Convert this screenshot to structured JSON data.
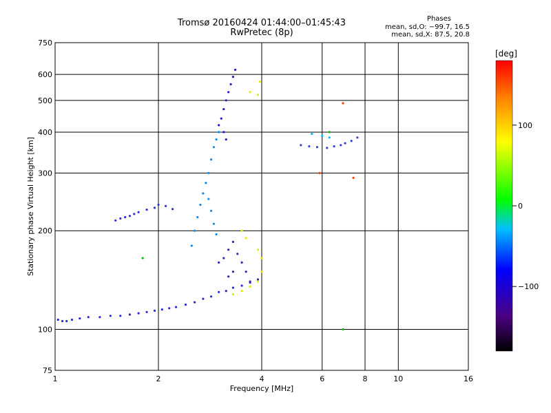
{
  "header": {
    "title_line1": "Tromsø 20160424 01:44:00–01:45:43",
    "title_line2": "RwPretec (8p)"
  },
  "phases": {
    "heading": "Phases",
    "line_o": "mean, sd,O: −99.7, 16.5",
    "line_x": "mean, sd,X:  87.5, 20.8"
  },
  "colorbar": {
    "label": "[deg]",
    "ticks": [
      "100",
      "0",
      "−100"
    ],
    "tick_values": [
      100,
      0,
      -100
    ],
    "range": [
      -180,
      180
    ],
    "colors": [
      "#000000",
      "#4b0082",
      "#0000ff",
      "#00bfff",
      "#00ff00",
      "#ffff00",
      "#ff8c00",
      "#ff0000"
    ]
  },
  "chart_data": {
    "type": "scatter",
    "title": "Tromsø 20160424 01:44:00–01:45:43",
    "subtitle": "RwPretec (8p)",
    "xlabel": "Frequency [MHz]",
    "ylabel": "Stationary phase Virtual Height [km]",
    "xscale": "log",
    "yscale": "log",
    "xlim": [
      1,
      16
    ],
    "ylim": [
      75,
      750
    ],
    "x_ticks": [
      "1",
      "2",
      "4",
      "6",
      "8",
      "10",
      "16"
    ],
    "x_tick_values": [
      1,
      2,
      4,
      6,
      8,
      10,
      16
    ],
    "y_ticks": [
      "75",
      "100",
      "200",
      "300",
      "400",
      "500",
      "600",
      "750"
    ],
    "y_tick_values": [
      75,
      100,
      200,
      300,
      400,
      500,
      600,
      750
    ],
    "grid": true,
    "traces": [
      {
        "name": "",
        "color": "#2828dc",
        "points": [
          [
            1.02,
            107
          ],
          [
            1.05,
            106
          ],
          [
            1.08,
            106
          ],
          [
            1.12,
            107
          ],
          [
            1.18,
            108
          ],
          [
            1.25,
            109
          ],
          [
            1.35,
            109
          ],
          [
            1.45,
            110
          ],
          [
            1.55,
            110
          ],
          [
            1.65,
            111
          ],
          [
            1.75,
            112
          ],
          [
            1.85,
            113
          ],
          [
            1.95,
            114
          ],
          [
            2.05,
            115
          ],
          [
            2.15,
            116
          ],
          [
            2.25,
            117
          ],
          [
            2.4,
            119
          ],
          [
            2.55,
            121
          ],
          [
            2.7,
            124
          ],
          [
            2.85,
            126
          ],
          [
            3.0,
            130
          ],
          [
            3.15,
            131
          ],
          [
            3.3,
            134
          ],
          [
            3.5,
            136
          ],
          [
            3.7,
            139
          ],
          [
            3.9,
            142
          ]
        ]
      },
      {
        "name": "",
        "color": "#3030e0",
        "points": [
          [
            1.5,
            215
          ],
          [
            1.55,
            218
          ],
          [
            1.6,
            220
          ],
          [
            1.65,
            222
          ],
          [
            1.7,
            225
          ],
          [
            1.75,
            228
          ],
          [
            1.85,
            232
          ],
          [
            1.95,
            235
          ],
          [
            2.0,
            240
          ],
          [
            2.1,
            238
          ],
          [
            2.2,
            233
          ]
        ]
      },
      {
        "name": "",
        "color": "#0090ff",
        "points": [
          [
            2.5,
            180
          ],
          [
            2.55,
            200
          ],
          [
            2.6,
            220
          ],
          [
            2.65,
            240
          ],
          [
            2.7,
            260
          ],
          [
            2.75,
            280
          ],
          [
            2.8,
            250
          ],
          [
            2.85,
            230
          ],
          [
            2.9,
            210
          ],
          [
            2.95,
            195
          ],
          [
            2.8,
            300
          ],
          [
            2.85,
            330
          ],
          [
            2.9,
            360
          ],
          [
            2.95,
            380
          ],
          [
            3.0,
            400
          ]
        ]
      },
      {
        "name": "",
        "color": "#3a10c8",
        "points": [
          [
            3.0,
            420
          ],
          [
            3.05,
            440
          ],
          [
            3.1,
            470
          ],
          [
            3.15,
            500
          ],
          [
            3.2,
            530
          ],
          [
            3.25,
            560
          ],
          [
            3.3,
            590
          ],
          [
            3.35,
            620
          ],
          [
            3.1,
            400
          ],
          [
            3.15,
            380
          ]
        ]
      },
      {
        "name": "",
        "color": "#4020b0",
        "points": [
          [
            3.0,
            160
          ],
          [
            3.1,
            165
          ],
          [
            3.2,
            175
          ],
          [
            3.3,
            185
          ],
          [
            3.4,
            170
          ],
          [
            3.5,
            160
          ],
          [
            3.6,
            150
          ],
          [
            3.7,
            140
          ],
          [
            3.3,
            150
          ],
          [
            3.2,
            145
          ]
        ]
      },
      {
        "name": "",
        "color": "#e8e800",
        "points": [
          [
            3.3,
            128
          ],
          [
            3.5,
            131
          ],
          [
            3.7,
            135
          ],
          [
            3.9,
            140
          ],
          [
            4.0,
            150
          ],
          [
            4.0,
            165
          ],
          [
            3.9,
            175
          ],
          [
            3.6,
            190
          ],
          [
            3.5,
            200
          ],
          [
            3.9,
            520
          ],
          [
            3.95,
            570
          ],
          [
            3.7,
            530
          ]
        ]
      },
      {
        "name": "",
        "color": "#3040d0",
        "points": [
          [
            5.2,
            365
          ],
          [
            5.5,
            362
          ],
          [
            5.8,
            360
          ],
          [
            6.2,
            358
          ],
          [
            6.5,
            362
          ],
          [
            6.8,
            365
          ],
          [
            7.0,
            370
          ],
          [
            7.3,
            376
          ],
          [
            7.6,
            385
          ]
        ]
      },
      {
        "name": "",
        "color": "#00c0ff",
        "points": [
          [
            5.6,
            395
          ],
          [
            6.0,
            390
          ],
          [
            6.3,
            385
          ]
        ]
      },
      {
        "name": "",
        "color": "#ff4000",
        "points": [
          [
            5.9,
            300
          ],
          [
            7.4,
            290
          ],
          [
            6.9,
            490
          ]
        ]
      },
      {
        "name": "",
        "color": "#00c000",
        "points": [
          [
            1.8,
            165
          ],
          [
            6.3,
            400
          ],
          [
            6.9,
            100
          ]
        ]
      }
    ]
  }
}
